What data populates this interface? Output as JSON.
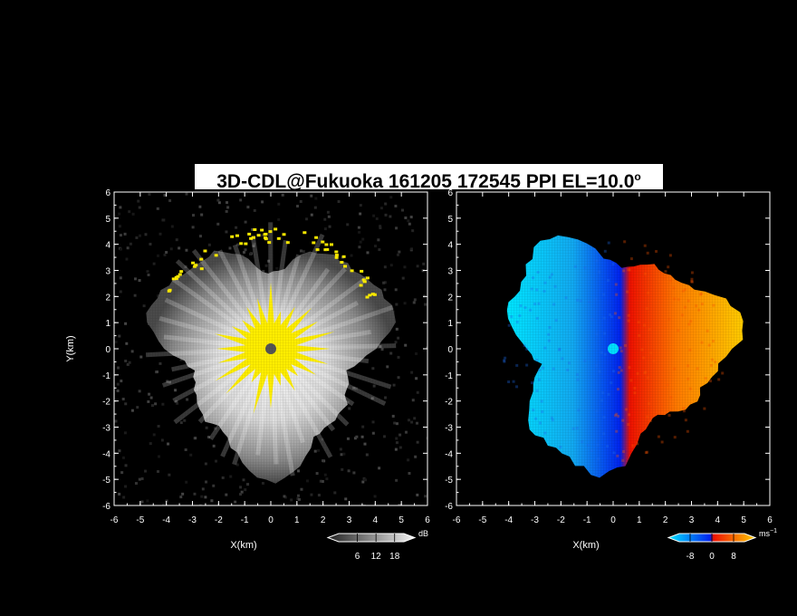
{
  "title": {
    "main": "3D-CDL@Fukuoka 161205 172545 PPI EL=10.0",
    "degree": "o"
  },
  "chart_data": [
    {
      "type": "heatmap",
      "name": "reflectivity-ppi",
      "xlabel": "X(km)",
      "ylabel": "Y(km)",
      "xlim": [
        -6,
        6
      ],
      "ylim": [
        -6,
        6
      ],
      "x_ticks": [
        -6,
        -5,
        -4,
        -3,
        -2,
        -1,
        0,
        1,
        2,
        3,
        4,
        5,
        6
      ],
      "y_ticks": [
        -6,
        -5,
        -4,
        -3,
        -2,
        -1,
        0,
        1,
        2,
        3,
        4,
        5,
        6
      ],
      "colorbar": {
        "unit": "dB",
        "ticks": [
          6,
          12,
          18
        ],
        "range": [
          0,
          21
        ],
        "colormap": "gray-to-white, saturated yellow",
        "colors": {
          "low": "#1a1a1a",
          "high": "#f2f2f2",
          "saturated": "#ffee00"
        }
      },
      "echo_radius_km": 5,
      "saturated_radius_km": 1.3
    },
    {
      "type": "heatmap",
      "name": "doppler-velocity-ppi",
      "xlabel": "X(km)",
      "xlim": [
        -6,
        6
      ],
      "ylim": [
        -6,
        6
      ],
      "x_ticks": [
        -6,
        -5,
        -4,
        -3,
        -2,
        -1,
        0,
        1,
        2,
        3,
        4,
        5,
        6
      ],
      "y_ticks": [
        -6,
        -5,
        -4,
        -3,
        -2,
        -1,
        0,
        1,
        2,
        3,
        4,
        5,
        6
      ],
      "colorbar": {
        "unit": "ms",
        "unit_exp": "−1",
        "ticks": [
          -8,
          0,
          8
        ],
        "range": [
          -12,
          12
        ],
        "colormap": "cyan-blue negative, red-yellow positive",
        "colors": {
          "neg_far": "#00e5ff",
          "neg_near": "#0022ee",
          "pos_near": "#ee1100",
          "pos_far": "#ffcc00"
        }
      },
      "echo_radius_km": 5,
      "zero_line_x_km": 0
    }
  ]
}
